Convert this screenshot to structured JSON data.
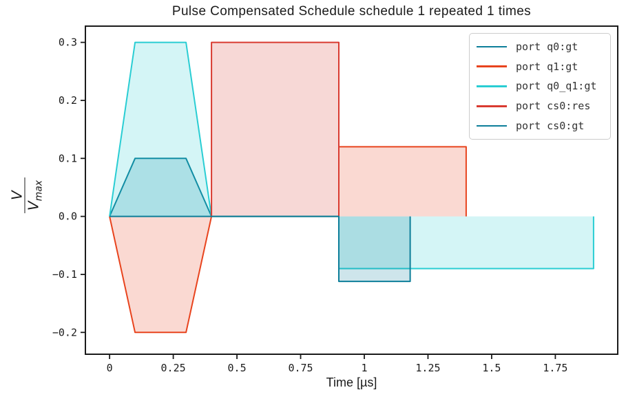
{
  "chart_data": {
    "type": "area",
    "title": "Pulse Compensated Schedule schedule 1 repeated 1 times",
    "xlabel": "Time [µs]",
    "ylabel": {
      "numerator": "V",
      "denominator_base": "V",
      "denominator_sub": "max"
    },
    "xlim": [
      -0.095,
      1.995
    ],
    "ylim": [
      -0.2376,
      0.328
    ],
    "grid": false,
    "legend_position": "upper right",
    "xticks": [
      0,
      0.25,
      0.5,
      0.75,
      1,
      1.25,
      1.5,
      1.75
    ],
    "xtick_labels": [
      "0",
      "0.25",
      "0.5",
      "0.75",
      "1",
      "1.25",
      "1.5",
      "1.75"
    ],
    "yticks": [
      0.3,
      0.2,
      0.1,
      0.0,
      -0.1,
      -0.2
    ],
    "ytick_labels": [
      "0.3",
      "0.2",
      "0.1",
      "0.0",
      "−0.1",
      "−0.2"
    ],
    "axis_color": "#1a1a1a",
    "fill_alpha": 0.2,
    "line_width": 2,
    "series": [
      {
        "name": "port q0:gt",
        "color": "#0c7e99",
        "description": "trapezoid pulse, peak 0.1, t 0 to 0.4",
        "points": [
          [
            0,
            0
          ],
          [
            0.1,
            0.1
          ],
          [
            0.3,
            0.1
          ],
          [
            0.4,
            0
          ]
        ]
      },
      {
        "name": "port q1:gt",
        "color": "#e8431d",
        "description": "negative trapezoid (-0.2, t 0-0.4) plus compensation square (+0.12, t 0.9-1.4)",
        "points": [
          [
            0,
            0
          ],
          [
            0.1,
            -0.2
          ],
          [
            0.3,
            -0.2
          ],
          [
            0.4,
            0
          ],
          [
            0.9,
            0
          ],
          [
            0.9,
            0.12
          ],
          [
            1.4,
            0.12
          ],
          [
            1.4,
            0
          ]
        ]
      },
      {
        "name": "port q0_q1:gt",
        "color": "#29cdd3",
        "description": "trapezoid pulse (peak 0.3, t 0-0.4) plus compensation square (-0.09, t 0.9-1.9)",
        "points": [
          [
            0,
            0
          ],
          [
            0.1,
            0.3
          ],
          [
            0.3,
            0.3
          ],
          [
            0.4,
            0
          ],
          [
            0.9,
            0
          ],
          [
            0.9,
            -0.09
          ],
          [
            1.9,
            -0.09
          ],
          [
            1.9,
            0
          ]
        ]
      },
      {
        "name": "port cs0:res",
        "color": "#d93a30",
        "description": "square pulse, amplitude 0.3, t 0.4 to 0.9",
        "points": [
          [
            0.4,
            0
          ],
          [
            0.4,
            0.3
          ],
          [
            0.9,
            0.3
          ],
          [
            0.9,
            0
          ]
        ]
      },
      {
        "name": "port cs0:gt",
        "color": "#0c7e99",
        "description": "zero line t 0-0.9 then compensation square (-0.112, t 0.9-1.18)",
        "points": [
          [
            0,
            0
          ],
          [
            0.9,
            0
          ],
          [
            0.9,
            -0.112
          ],
          [
            1.18,
            -0.112
          ],
          [
            1.18,
            0
          ]
        ]
      }
    ]
  }
}
